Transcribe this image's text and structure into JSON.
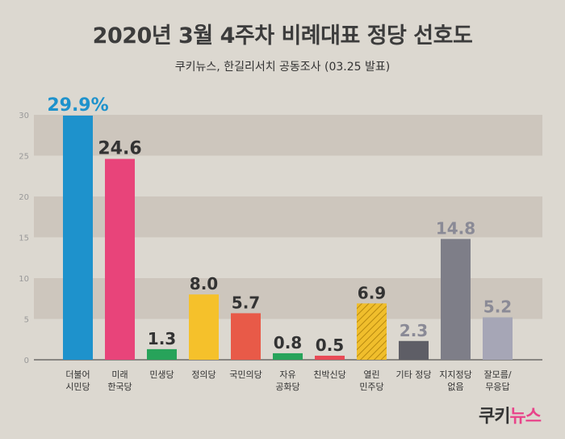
{
  "title": "2020년 3월 4주차 비례대표 정당 선호도",
  "subtitle": "쿠키뉴스, 한길리서치 공동조사 (03.25 발표)",
  "logo": {
    "part1": "쿠키",
    "part2": "뉴스"
  },
  "chart_data": {
    "type": "bar",
    "ylim": [
      0,
      30
    ],
    "yticks": [
      "0",
      "5",
      "10",
      "15",
      "20",
      "25",
      "30"
    ],
    "categories": [
      [
        "더불어",
        "시민당"
      ],
      [
        "미래",
        "한국당"
      ],
      [
        "민생당"
      ],
      [
        "정의당"
      ],
      [
        "국민의당"
      ],
      [
        "자유",
        "공화당"
      ],
      [
        "친박신당"
      ],
      [
        "열린",
        "민주당"
      ],
      [
        "기타 정당"
      ],
      [
        "지지정당",
        "없음"
      ],
      [
        "잘모름/",
        "무응답"
      ]
    ],
    "values": [
      29.9,
      24.6,
      1.3,
      8.0,
      5.7,
      0.8,
      0.5,
      6.9,
      2.3,
      14.8,
      5.2
    ],
    "value_labels": [
      "29.9%",
      "24.6",
      "1.3",
      "8.0",
      "5.7",
      "0.8",
      "0.5",
      "6.9",
      "2.3",
      "14.8",
      "5.2"
    ],
    "colors": [
      "#1e92cc",
      "#e8447a",
      "#27a35a",
      "#f5c12b",
      "#e85a48",
      "#27a35a",
      "#e84a55",
      "#f0be2c",
      "#5e5e66",
      "#7e7e88",
      "#a6a6b6"
    ],
    "label_colors": [
      "#1e92cc",
      "#333333",
      "#333333",
      "#333333",
      "#333333",
      "#333333",
      "#333333",
      "#333333",
      "#8a8a96",
      "#8a8a96",
      "#8a8a96"
    ],
    "hatched": [
      false,
      false,
      false,
      false,
      false,
      false,
      false,
      true,
      false,
      false,
      false
    ],
    "grid": "alternating bands"
  }
}
